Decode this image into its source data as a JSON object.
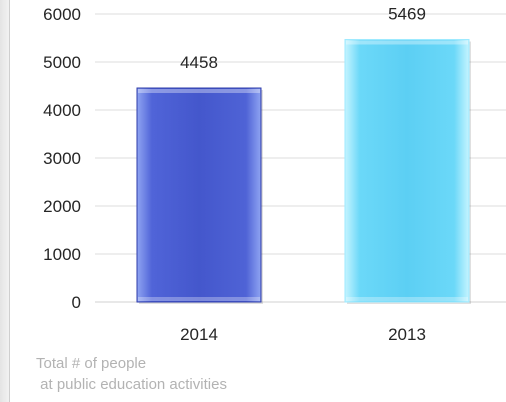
{
  "chart_data": {
    "type": "bar",
    "categories": [
      "2014",
      "2013"
    ],
    "values": [
      4458,
      5469
    ],
    "data_labels": [
      "4458",
      "5469"
    ],
    "y_ticks": [
      "0",
      "1000",
      "2000",
      "3000",
      "4000",
      "5000",
      "6000"
    ],
    "ylim": [
      0,
      6000
    ],
    "grid": true,
    "legend": "none",
    "title": "",
    "xlabel": "",
    "ylabel": "",
    "caption": "Total # of people\n at public education activities",
    "bar_colors": [
      "#4a5fd6",
      "#5ed2f6"
    ],
    "bar_edge_colors": [
      "#2d3aa8",
      "#9eeaff"
    ]
  }
}
